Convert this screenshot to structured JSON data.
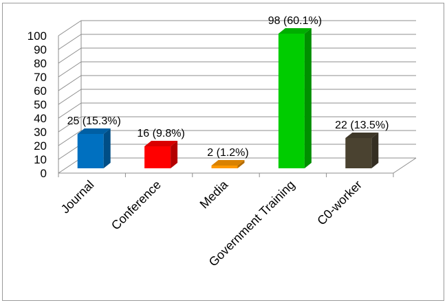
{
  "chart_data": {
    "type": "bar",
    "style": "3d-column",
    "title": "",
    "xlabel": "",
    "ylabel": "",
    "ylim": [
      0,
      100
    ],
    "ytick_step": 10,
    "grid": true,
    "legend": "none",
    "categories": [
      "Journal",
      "Conference",
      "Media",
      "Government Training",
      "C0-worker"
    ],
    "values": [
      25,
      16,
      2,
      98,
      22
    ],
    "data_labels": [
      "25 (15.3%)",
      "16 (9.8%)",
      "2 (1.2%)",
      "98 (60.1%)",
      "22 (13.5%)"
    ],
    "colors": [
      "#0070c0",
      "#ff0000",
      "#ff9900",
      "#00cc00",
      "#4a4230"
    ]
  }
}
